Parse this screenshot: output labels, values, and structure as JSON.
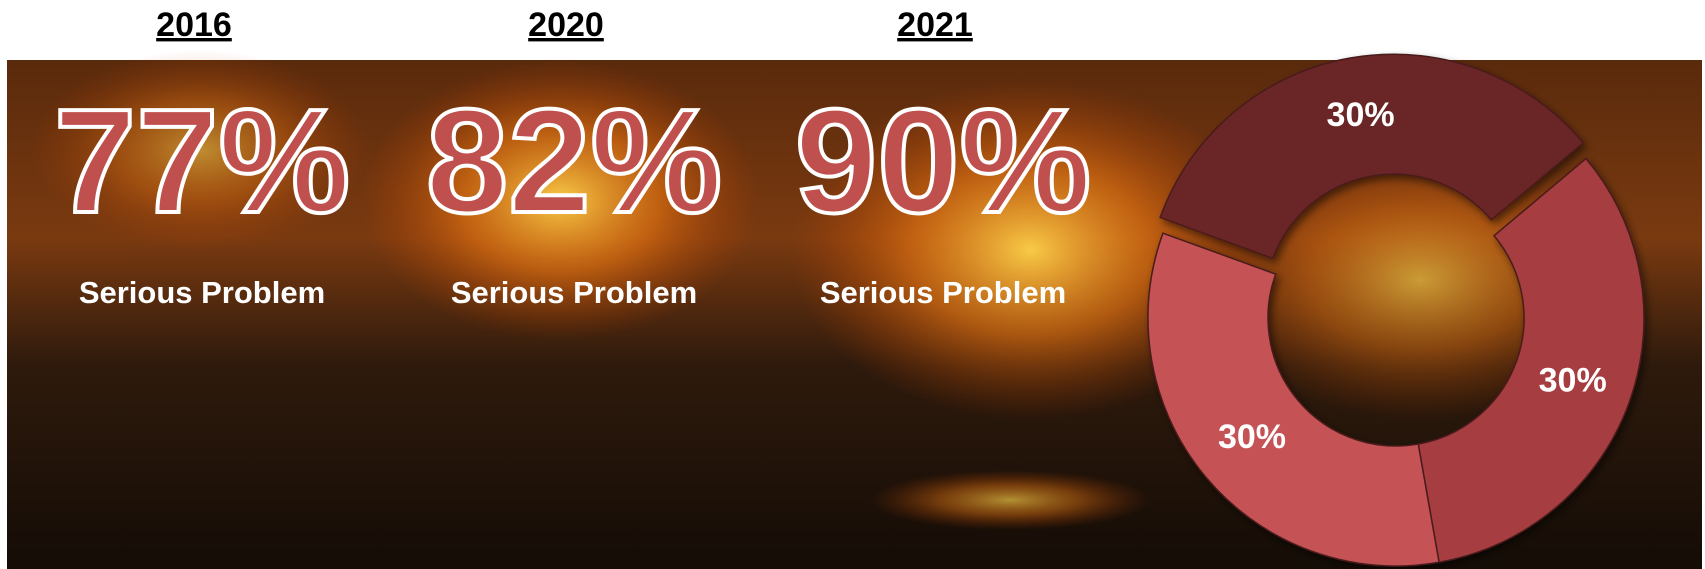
{
  "stats": [
    {
      "year": "2016",
      "value": "77%",
      "label": "Serious Problem"
    },
    {
      "year": "2020",
      "value": "82%",
      "label": "Serious Problem"
    },
    {
      "year": "2021",
      "value": "90%",
      "label": "Serious Problem"
    }
  ],
  "chart_data": {
    "type": "donut",
    "values": [
      30,
      30,
      30
    ],
    "value_labels": [
      "30%",
      "30%",
      "30%"
    ],
    "colors": [
      "#6b2527",
      "#a63d3f",
      "#c55254"
    ]
  }
}
